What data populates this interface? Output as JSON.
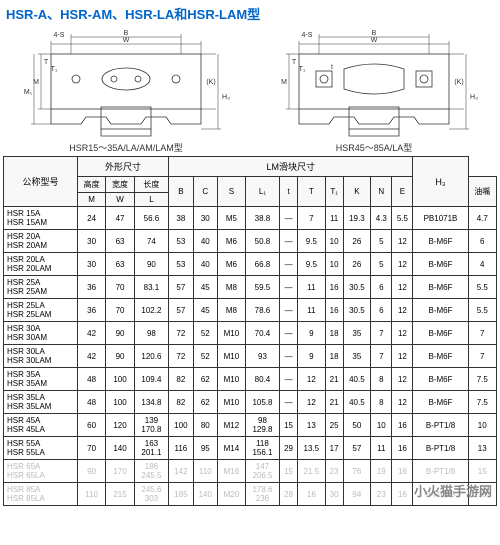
{
  "title": "HSR-A、HSR-AM、HSR-LA和HSR-LAM型",
  "diagram_left_label": "HSR15～35A/LA/AM/LAM型",
  "diagram_right_label": "HSR45～85A/LA型",
  "diagram_dims": [
    "W",
    "B",
    "4-S",
    "M",
    "T",
    "M₁",
    "T₁",
    "H₃",
    "(K)"
  ],
  "group_headers": {
    "model": "公称型号",
    "outer": "外形尺寸",
    "lm": "LM滑块尺寸",
    "oil": "油嘴"
  },
  "sub_headers": {
    "height": "高度",
    "width": "宽度",
    "length": "长度"
  },
  "col_symbols": [
    "M",
    "W",
    "L",
    "B",
    "C",
    "S",
    "L₁",
    "t",
    "T",
    "T₁",
    "K",
    "N",
    "E",
    "",
    "H₃"
  ],
  "rows": [
    {
      "models": [
        "HSR 15A",
        "HSR 15AM"
      ],
      "v": [
        "24",
        "47",
        "56.6",
        "38",
        "30",
        "M5",
        "38.8",
        "—",
        "7",
        "11",
        "19.3",
        "4.3",
        "5.5",
        "PB1071B",
        "4.7"
      ]
    },
    {
      "models": [
        "HSR 20A",
        "HSR 20AM"
      ],
      "v": [
        "30",
        "63",
        "74",
        "53",
        "40",
        "M6",
        "50.8",
        "—",
        "9.5",
        "10",
        "26",
        "5",
        "12",
        "B-M6F",
        "6"
      ]
    },
    {
      "models": [
        "HSR 20LA",
        "HSR 20LAM"
      ],
      "v": [
        "30",
        "63",
        "90",
        "53",
        "40",
        "M6",
        "66.8",
        "—",
        "9.5",
        "10",
        "26",
        "5",
        "12",
        "B-M6F",
        "4"
      ]
    },
    {
      "models": [
        "HSR 25A",
        "HSR 25AM"
      ],
      "v": [
        "36",
        "70",
        "83.1",
        "57",
        "45",
        "M8",
        "59.5",
        "—",
        "11",
        "16",
        "30.5",
        "6",
        "12",
        "B-M6F",
        "5.5"
      ]
    },
    {
      "models": [
        "HSR 25LA",
        "HSR 25LAM"
      ],
      "v": [
        "36",
        "70",
        "102.2",
        "57",
        "45",
        "M8",
        "78.6",
        "—",
        "11",
        "16",
        "30.5",
        "6",
        "12",
        "B-M6F",
        "5.5"
      ]
    },
    {
      "models": [
        "HSR 30A",
        "HSR 30AM"
      ],
      "v": [
        "42",
        "90",
        "98",
        "72",
        "52",
        "M10",
        "70.4",
        "—",
        "9",
        "18",
        "35",
        "7",
        "12",
        "B-M6F",
        "7"
      ]
    },
    {
      "models": [
        "HSR 30LA",
        "HSR 30LAM"
      ],
      "v": [
        "42",
        "90",
        "120.6",
        "72",
        "52",
        "M10",
        "93",
        "—",
        "9",
        "18",
        "35",
        "7",
        "12",
        "B-M6F",
        "7"
      ]
    },
    {
      "models": [
        "HSR 35A",
        "HSR 35AM"
      ],
      "v": [
        "48",
        "100",
        "109.4",
        "82",
        "62",
        "M10",
        "80.4",
        "—",
        "12",
        "21",
        "40.5",
        "8",
        "12",
        "B-M6F",
        "7.5"
      ]
    },
    {
      "models": [
        "HSR 35LA",
        "HSR 35LAM"
      ],
      "v": [
        "48",
        "100",
        "134.8",
        "82",
        "62",
        "M10",
        "105.8",
        "—",
        "12",
        "21",
        "40.5",
        "8",
        "12",
        "B-M6F",
        "7.5"
      ]
    },
    {
      "models": [
        "HSR 45A",
        "HSR 45LA"
      ],
      "v": [
        "60",
        "120",
        "139\n170.8",
        "100",
        "80",
        "M12",
        "98\n129.8",
        "15",
        "13",
        "25",
        "50",
        "10",
        "16",
        "B-PT1/8",
        "10"
      ]
    },
    {
      "models": [
        "HSR 55A",
        "HSR 55LA"
      ],
      "v": [
        "70",
        "140",
        "163\n201.1",
        "116",
        "95",
        "M14",
        "118\n156.1",
        "29",
        "13.5",
        "17",
        "57",
        "11",
        "16",
        "B-PT1/8",
        "13"
      ]
    },
    {
      "models": [
        "HSR 65A",
        "HSR 65LA"
      ],
      "v": [
        "90",
        "170",
        "186\n245.5",
        "142",
        "110",
        "M16",
        "147\n206.5",
        "15",
        "21.5",
        "23",
        "76",
        "19",
        "16",
        "B-PT1/8",
        "15"
      ],
      "faded": true
    },
    {
      "models": [
        "HSR 85A",
        "HSR 85LA"
      ],
      "v": [
        "110",
        "215",
        "245.6\n303",
        "185",
        "140",
        "M20",
        "178.6\n236",
        "28",
        "16",
        "30",
        "94",
        "23",
        "16",
        "B-PT1/8",
        "18"
      ],
      "faded": true
    }
  ],
  "watermark": "小火猫手游网"
}
